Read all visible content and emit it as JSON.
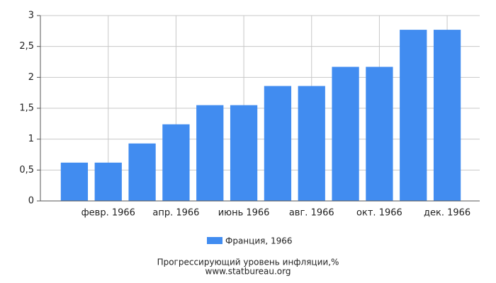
{
  "chart_data": {
    "type": "bar",
    "categories": [
      null,
      "февр. 1966",
      null,
      "апр. 1966",
      null,
      "июнь 1966",
      null,
      "авг. 1966",
      null,
      "окт. 1966",
      null,
      "дек. 1966"
    ],
    "series": [
      {
        "name": "Франция, 1966",
        "color": "#418cf0",
        "values": [
          0.62,
          0.62,
          0.93,
          1.24,
          1.55,
          1.55,
          1.86,
          1.86,
          2.17,
          2.17,
          2.77,
          2.77
        ]
      }
    ],
    "ylim": [
      0,
      3
    ],
    "yticks": [
      0,
      {
        "value": 0.5,
        "label": "0,5"
      },
      1,
      {
        "value": 1.5,
        "label": "1,5"
      },
      2,
      {
        "value": 2.5,
        "label": "2,5"
      },
      3
    ],
    "grid": true,
    "legend": "bottom",
    "caption": "Прогрессирующий уровень инфляции,%",
    "source": "www.statbureau.org"
  }
}
